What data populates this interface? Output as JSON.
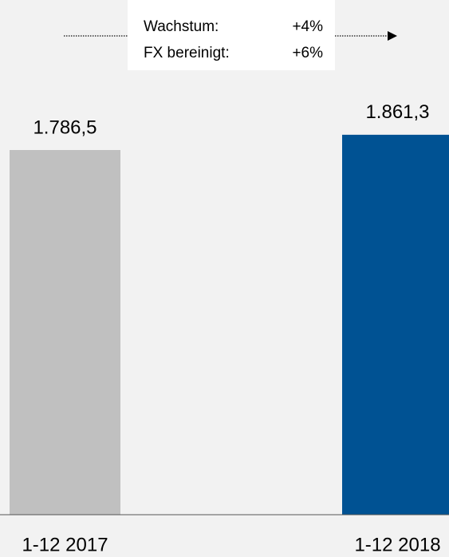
{
  "chart_data": {
    "type": "bar",
    "categories": [
      "1-12 2017",
      "1-12 2018"
    ],
    "values": [
      1786.5,
      1861.3
    ],
    "value_labels": [
      "1.786,5",
      "1.861,3"
    ],
    "colors": [
      "#c0c0c0",
      "#005293"
    ],
    "ylim": [
      0,
      2000
    ],
    "annotation": {
      "lines": [
        [
          "Wachstum:",
          "+4%"
        ],
        [
          "FX bereinigt:",
          "+6%"
        ]
      ]
    }
  }
}
